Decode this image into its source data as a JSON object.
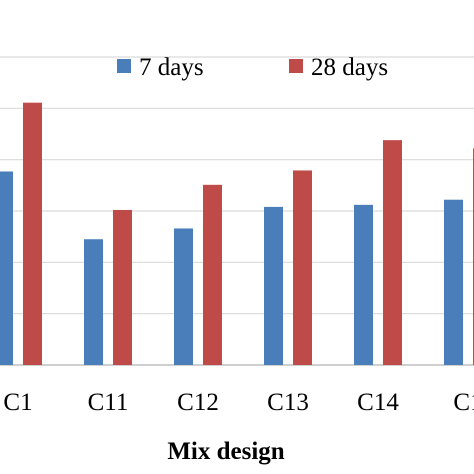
{
  "chart_data": {
    "type": "bar",
    "categories": [
      "C1",
      "C11",
      "C12",
      "C13",
      "C14",
      "C1"
    ],
    "series": [
      {
        "name": "7 days",
        "color": "#4a7ebb",
        "values": [
          37.7,
          24.5,
          26.6,
          30.8,
          31.2,
          32.2
        ]
      },
      {
        "name": "28 days",
        "color": "#be4b48",
        "values": [
          51.1,
          30.2,
          35.1,
          37.9,
          43.8,
          42.2
        ]
      }
    ],
    "xlabel": "Mix design",
    "ylabel": "",
    "ylim": [
      0,
      60
    ],
    "grid": true,
    "legend_position": "top-right"
  }
}
